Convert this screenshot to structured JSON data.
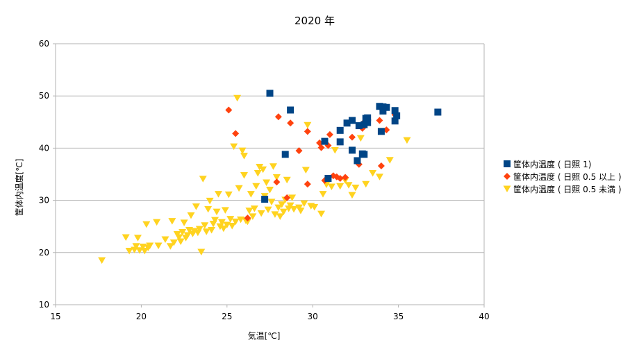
{
  "chart_data": {
    "type": "scatter",
    "title": "2020 年",
    "xlabel": "気温[℃]",
    "ylabel": "筐体内温度[℃]",
    "xlim": [
      15,
      40
    ],
    "ylim": [
      10,
      60
    ],
    "xticks": [
      15,
      20,
      25,
      30,
      35,
      40
    ],
    "yticks": [
      10,
      20,
      30,
      40,
      50,
      60
    ],
    "grid": "horizontal",
    "legend": "right",
    "series": [
      {
        "name": "筐体内温度 ( 日照 1)",
        "color": "#004586",
        "marker": "square",
        "points": [
          [
            27.5,
            50.5
          ],
          [
            28.7,
            47.3
          ],
          [
            28.4,
            38.8
          ],
          [
            27.2,
            30.2
          ],
          [
            30.7,
            41.3
          ],
          [
            30.9,
            34.2
          ],
          [
            31.6,
            41.2
          ],
          [
            31.6,
            43.4
          ],
          [
            32.0,
            44.8
          ],
          [
            32.3,
            45.3
          ],
          [
            32.3,
            39.6
          ],
          [
            32.6,
            37.6
          ],
          [
            32.7,
            44.3
          ],
          [
            32.9,
            38.9
          ],
          [
            33.0,
            38.8
          ],
          [
            33.0,
            44.5
          ],
          [
            33.1,
            45.7
          ],
          [
            33.2,
            44.9
          ],
          [
            33.2,
            45.8
          ],
          [
            33.9,
            48.0
          ],
          [
            34.0,
            43.2
          ],
          [
            34.1,
            47.1
          ],
          [
            34.1,
            47.9
          ],
          [
            34.3,
            47.8
          ],
          [
            34.8,
            47.2
          ],
          [
            34.8,
            45.2
          ],
          [
            34.9,
            46.2
          ],
          [
            37.3,
            46.9
          ]
        ]
      },
      {
        "name": "筐体内温度 ( 日照 0.5 以上 )",
        "color": "#ff420e",
        "marker": "diamond",
        "points": [
          [
            25.1,
            47.3
          ],
          [
            25.5,
            42.8
          ],
          [
            26.2,
            26.6
          ],
          [
            27.9,
            33.5
          ],
          [
            28.0,
            46.0
          ],
          [
            28.5,
            30.5
          ],
          [
            28.7,
            44.8
          ],
          [
            29.2,
            39.5
          ],
          [
            29.7,
            43.2
          ],
          [
            29.7,
            33.1
          ],
          [
            30.4,
            41.0
          ],
          [
            30.5,
            40.1
          ],
          [
            30.7,
            33.8
          ],
          [
            30.9,
            40.5
          ],
          [
            31.0,
            42.6
          ],
          [
            31.2,
            34.7
          ],
          [
            31.4,
            34.5
          ],
          [
            31.6,
            34.2
          ],
          [
            31.9,
            34.4
          ],
          [
            32.3,
            42.1
          ],
          [
            32.7,
            36.9
          ],
          [
            32.9,
            43.8
          ],
          [
            33.0,
            45.0
          ],
          [
            33.9,
            45.3
          ],
          [
            34.0,
            36.6
          ],
          [
            34.3,
            43.5
          ],
          [
            34.8,
            46.4
          ]
        ]
      },
      {
        "name": "筐体内温度 ( 日照 0.5 未満 )",
        "color": "#ffd320",
        "marker": "triangle-down",
        "points": [
          [
            17.7,
            18.5
          ],
          [
            19.1,
            22.9
          ],
          [
            19.3,
            20.3
          ],
          [
            19.6,
            20.5
          ],
          [
            19.7,
            21.2
          ],
          [
            19.8,
            22.8
          ],
          [
            19.9,
            20.4
          ],
          [
            20.1,
            21.1
          ],
          [
            20.2,
            20.3
          ],
          [
            20.3,
            25.4
          ],
          [
            20.4,
            20.9
          ],
          [
            20.5,
            21.3
          ],
          [
            20.9,
            25.8
          ],
          [
            21.0,
            21.3
          ],
          [
            21.4,
            22.5
          ],
          [
            21.7,
            21.2
          ],
          [
            21.8,
            26.0
          ],
          [
            21.9,
            21.9
          ],
          [
            22.1,
            23.5
          ],
          [
            22.2,
            22.9
          ],
          [
            22.3,
            22.1
          ],
          [
            22.4,
            23.9
          ],
          [
            22.5,
            25.7
          ],
          [
            22.6,
            22.8
          ],
          [
            22.7,
            23.3
          ],
          [
            22.8,
            24.3
          ],
          [
            22.9,
            27.1
          ],
          [
            23.0,
            23.6
          ],
          [
            23.1,
            24.1
          ],
          [
            23.2,
            28.8
          ],
          [
            23.3,
            23.8
          ],
          [
            23.4,
            24.5
          ],
          [
            23.5,
            20.1
          ],
          [
            23.6,
            34.1
          ],
          [
            23.7,
            25.2
          ],
          [
            23.8,
            24.0
          ],
          [
            23.9,
            28.3
          ],
          [
            24.0,
            29.9
          ],
          [
            24.1,
            24.3
          ],
          [
            24.2,
            25.5
          ],
          [
            24.3,
            26.2
          ],
          [
            24.4,
            27.8
          ],
          [
            24.5,
            31.2
          ],
          [
            24.6,
            25.0
          ],
          [
            24.7,
            25.8
          ],
          [
            24.8,
            24.6
          ],
          [
            24.9,
            28.1
          ],
          [
            25.0,
            25.3
          ],
          [
            25.1,
            31.1
          ],
          [
            25.2,
            26.4
          ],
          [
            25.3,
            25.1
          ],
          [
            25.4,
            40.3
          ],
          [
            25.5,
            25.9
          ],
          [
            25.6,
            49.6
          ],
          [
            25.7,
            32.3
          ],
          [
            25.8,
            26.3
          ],
          [
            25.9,
            39.5
          ],
          [
            26.0,
            38.5
          ],
          [
            26.0,
            34.8
          ],
          [
            26.1,
            26.1
          ],
          [
            26.2,
            25.9
          ],
          [
            26.3,
            28.0
          ],
          [
            26.4,
            31.2
          ],
          [
            26.5,
            26.9
          ],
          [
            26.6,
            28.4
          ],
          [
            26.7,
            32.7
          ],
          [
            26.8,
            35.2
          ],
          [
            26.9,
            36.4
          ],
          [
            27.0,
            27.5
          ],
          [
            27.1,
            35.9
          ],
          [
            27.2,
            30.8
          ],
          [
            27.3,
            33.4
          ],
          [
            27.4,
            28.2
          ],
          [
            27.5,
            32.0
          ],
          [
            27.6,
            29.7
          ],
          [
            27.7,
            36.5
          ],
          [
            27.8,
            27.3
          ],
          [
            27.9,
            34.4
          ],
          [
            28.0,
            28.6
          ],
          [
            28.1,
            26.9
          ],
          [
            28.2,
            29.2
          ],
          [
            28.3,
            27.8
          ],
          [
            28.4,
            30.1
          ],
          [
            28.5,
            33.9
          ],
          [
            28.6,
            28.4
          ],
          [
            28.7,
            29.0
          ],
          [
            28.8,
            30.5
          ],
          [
            28.9,
            28.3
          ],
          [
            29.2,
            28.6
          ],
          [
            29.3,
            28.0
          ],
          [
            29.5,
            29.4
          ],
          [
            29.6,
            35.8
          ],
          [
            29.7,
            44.4
          ],
          [
            29.9,
            28.9
          ],
          [
            30.1,
            28.7
          ],
          [
            30.5,
            27.4
          ],
          [
            30.6,
            31.2
          ],
          [
            30.8,
            33.0
          ],
          [
            31.1,
            32.6
          ],
          [
            31.3,
            39.6
          ],
          [
            31.6,
            32.7
          ],
          [
            31.9,
            33.8
          ],
          [
            32.1,
            32.9
          ],
          [
            32.3,
            31.0
          ],
          [
            32.5,
            32.4
          ],
          [
            32.8,
            41.9
          ],
          [
            33.1,
            33.1
          ],
          [
            33.5,
            35.2
          ],
          [
            33.9,
            34.5
          ],
          [
            34.5,
            37.7
          ],
          [
            35.5,
            41.5
          ]
        ]
      }
    ]
  }
}
